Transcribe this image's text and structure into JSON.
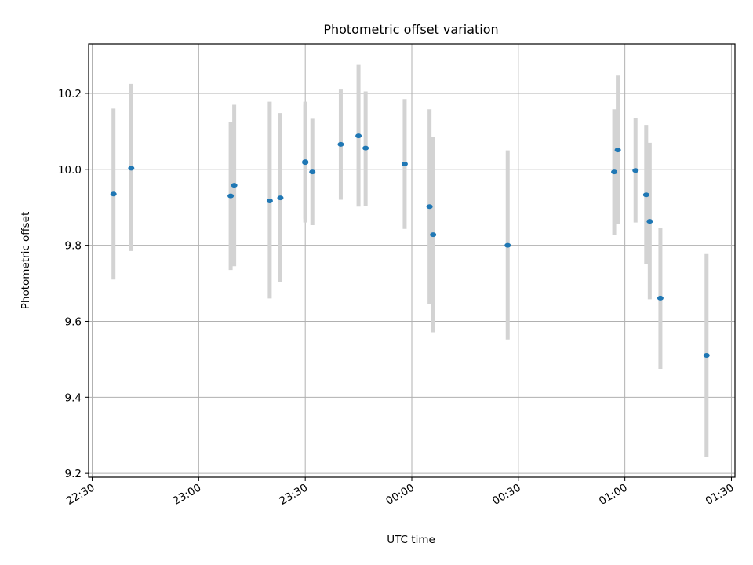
{
  "chart_data": {
    "type": "scatter",
    "title": "Photometric offset variation",
    "xlabel": "UTC time",
    "ylabel": "Photometric offset",
    "x_ticks": [
      "22:30",
      "23:00",
      "23:30",
      "00:00",
      "00:30",
      "01:00",
      "01:30"
    ],
    "y_ticks": [
      "9.2",
      "9.4",
      "9.6",
      "9.8",
      "10.0",
      "10.2"
    ],
    "xlim": [
      "22:29",
      "01:31"
    ],
    "ylim": [
      9.19,
      10.33
    ],
    "grid": true,
    "marker_color": "#1f77b4",
    "errorbar_color": "#d3d3d3",
    "points": [
      {
        "t": "22:36",
        "y": 9.935,
        "ylo": 9.71,
        "yhi": 10.16
      },
      {
        "t": "22:41",
        "y": 10.003,
        "ylo": 9.785,
        "yhi": 10.225
      },
      {
        "t": "23:09",
        "y": 9.93,
        "ylo": 9.735,
        "yhi": 10.125
      },
      {
        "t": "23:10",
        "y": 9.958,
        "ylo": 9.745,
        "yhi": 10.17
      },
      {
        "t": "23:20",
        "y": 9.917,
        "ylo": 9.66,
        "yhi": 10.178
      },
      {
        "t": "23:23",
        "y": 9.925,
        "ylo": 9.703,
        "yhi": 10.148
      },
      {
        "t": "23:30",
        "y": 10.02,
        "ylo": 9.86,
        "yhi": 10.178
      },
      {
        "t": "23:30",
        "y": 10.018,
        "ylo": 9.87,
        "yhi": 10.17
      },
      {
        "t": "23:32",
        "y": 9.993,
        "ylo": 9.853,
        "yhi": 10.133
      },
      {
        "t": "23:40",
        "y": 10.066,
        "ylo": 9.92,
        "yhi": 10.21
      },
      {
        "t": "23:45",
        "y": 10.088,
        "ylo": 9.902,
        "yhi": 10.275
      },
      {
        "t": "23:47",
        "y": 10.056,
        "ylo": 9.903,
        "yhi": 10.205
      },
      {
        "t": "23:58",
        "y": 10.014,
        "ylo": 9.843,
        "yhi": 10.185
      },
      {
        "t": "00:05",
        "y": 9.902,
        "ylo": 9.646,
        "yhi": 10.158
      },
      {
        "t": "00:06",
        "y": 9.828,
        "ylo": 9.571,
        "yhi": 10.085
      },
      {
        "t": "00:27",
        "y": 9.8,
        "ylo": 9.552,
        "yhi": 10.05
      },
      {
        "t": "00:57",
        "y": 9.993,
        "ylo": 9.827,
        "yhi": 10.158
      },
      {
        "t": "00:58",
        "y": 10.051,
        "ylo": 9.855,
        "yhi": 10.247
      },
      {
        "t": "01:03",
        "y": 9.997,
        "ylo": 9.86,
        "yhi": 10.135
      },
      {
        "t": "01:06",
        "y": 9.933,
        "ylo": 9.75,
        "yhi": 10.117
      },
      {
        "t": "01:07",
        "y": 9.863,
        "ylo": 9.658,
        "yhi": 10.07
      },
      {
        "t": "01:10",
        "y": 9.661,
        "ylo": 9.475,
        "yhi": 9.846
      },
      {
        "t": "01:23",
        "y": 9.51,
        "ylo": 9.243,
        "yhi": 9.777
      }
    ]
  }
}
